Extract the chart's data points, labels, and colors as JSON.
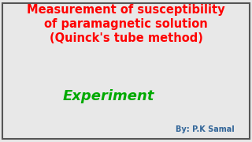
{
  "background_color": "#e8e8e8",
  "title_line1": "Measurement of susceptibility",
  "title_line2": "of paramagnetic solution",
  "title_line3": "(Quinck's tube method)",
  "title_color": "#ff0000",
  "title_fontsize": 10.5,
  "experiment_text": "Experiment",
  "experiment_color": "#00aa00",
  "experiment_fontsize": 13,
  "byline_text": "By: P.K Samal",
  "byline_color": "#336699",
  "byline_fontsize": 7,
  "border_color": "#555555",
  "border_linewidth": 1.5
}
